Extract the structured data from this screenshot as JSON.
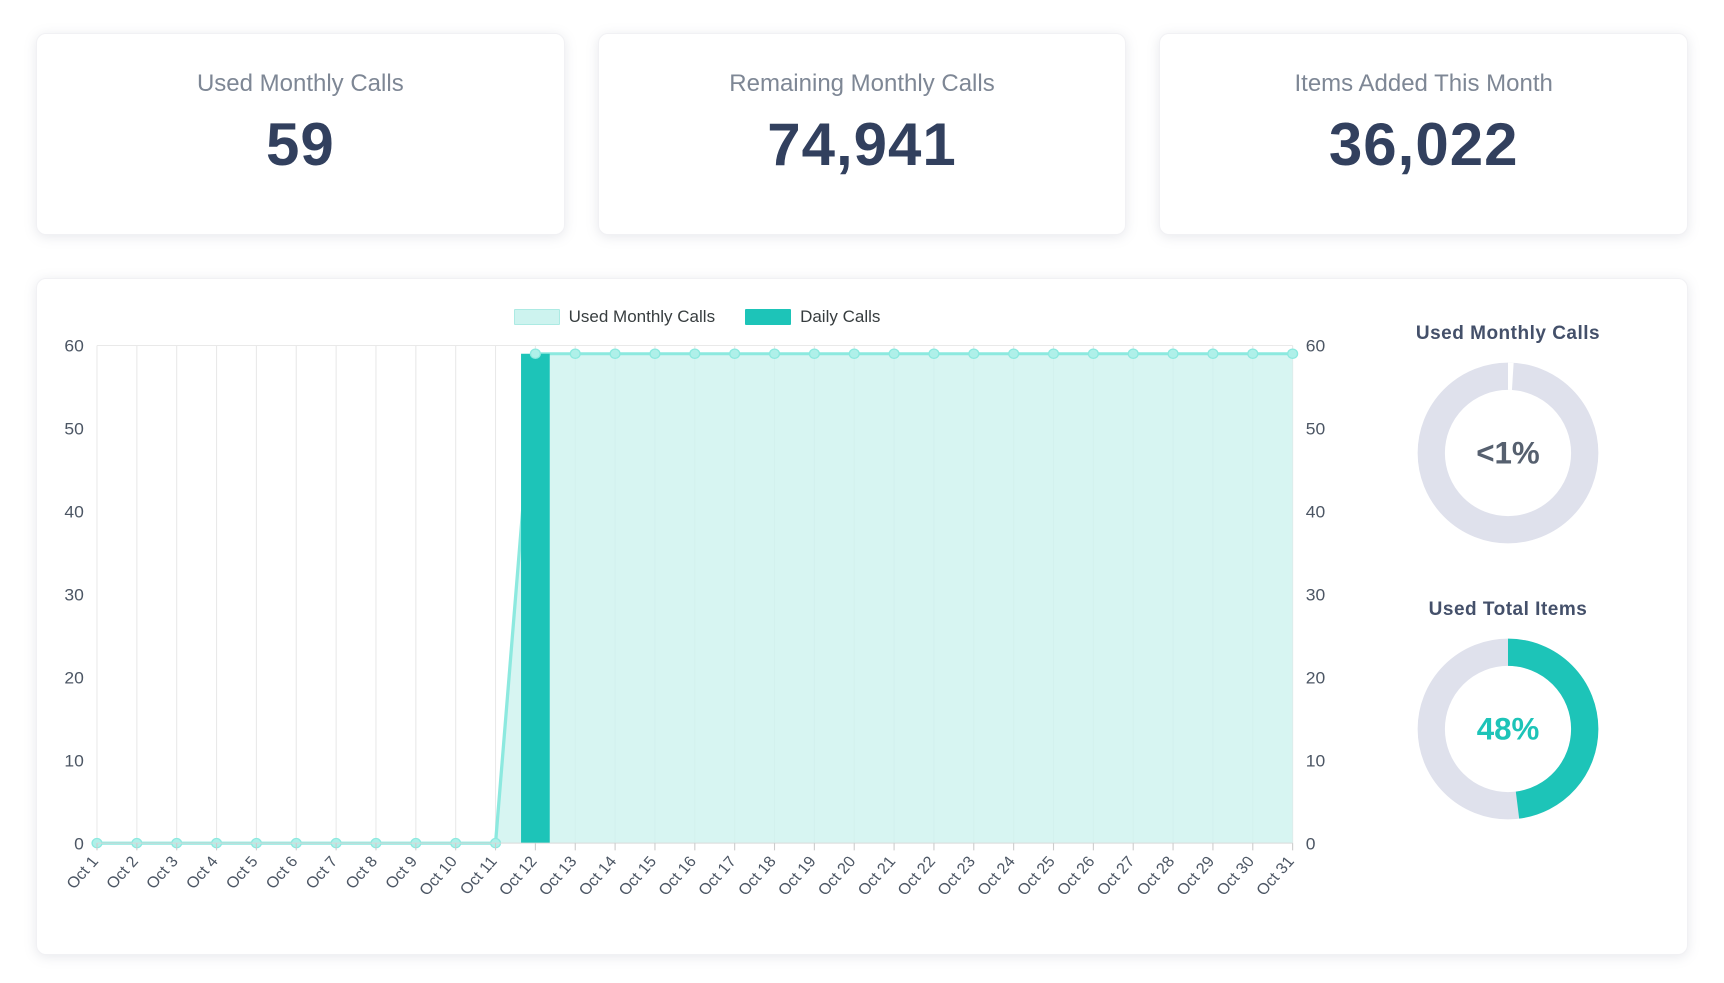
{
  "stats": [
    {
      "label": "Used Monthly Calls",
      "value": "59"
    },
    {
      "label": "Remaining Monthly Calls",
      "value": "74,941"
    },
    {
      "label": "Items Added This Month",
      "value": "36,022"
    }
  ],
  "chart_data": {
    "type": "area",
    "title": "",
    "categories": [
      "Oct 1",
      "Oct 2",
      "Oct 3",
      "Oct 4",
      "Oct 5",
      "Oct 6",
      "Oct 7",
      "Oct 8",
      "Oct 9",
      "Oct 10",
      "Oct 11",
      "Oct 12",
      "Oct 13",
      "Oct 14",
      "Oct 15",
      "Oct 16",
      "Oct 17",
      "Oct 18",
      "Oct 19",
      "Oct 20",
      "Oct 21",
      "Oct 22",
      "Oct 23",
      "Oct 24",
      "Oct 25",
      "Oct 26",
      "Oct 27",
      "Oct 28",
      "Oct 29",
      "Oct 30",
      "Oct 31"
    ],
    "series": [
      {
        "name": "Used Monthly Calls",
        "type": "area",
        "fill_color": "#cdf3ef",
        "line_color": "#8ce9df",
        "marker_color": "#aff0e9",
        "values": [
          0,
          0,
          0,
          0,
          0,
          0,
          0,
          0,
          0,
          0,
          0,
          59,
          59,
          59,
          59,
          59,
          59,
          59,
          59,
          59,
          59,
          59,
          59,
          59,
          59,
          59,
          59,
          59,
          59,
          59,
          59
        ]
      },
      {
        "name": "Daily Calls",
        "type": "bar",
        "color": "#1dc4b8",
        "values": [
          0,
          0,
          0,
          0,
          0,
          0,
          0,
          0,
          0,
          0,
          0,
          59,
          0,
          0,
          0,
          0,
          0,
          0,
          0,
          0,
          0,
          0,
          0,
          0,
          0,
          0,
          0,
          0,
          0,
          0,
          0
        ]
      }
    ],
    "ylim": [
      0,
      60
    ],
    "yticks": [
      0,
      10,
      20,
      30,
      40,
      50,
      60
    ],
    "grid": true,
    "legend_position": "top",
    "xlabel": "",
    "ylabel": ""
  },
  "donuts": [
    {
      "title": "Used Monthly Calls",
      "label": "<1%",
      "percent": 1,
      "arc_color": "#ffffff",
      "track_color": "#dfe1ec",
      "text_color": "#56606f"
    },
    {
      "title": "Used Total Items",
      "label": "48%",
      "percent": 48,
      "arc_color": "#1dc4b8",
      "track_color": "#dfe1ec",
      "text_color": "#1dc4b8"
    }
  ]
}
